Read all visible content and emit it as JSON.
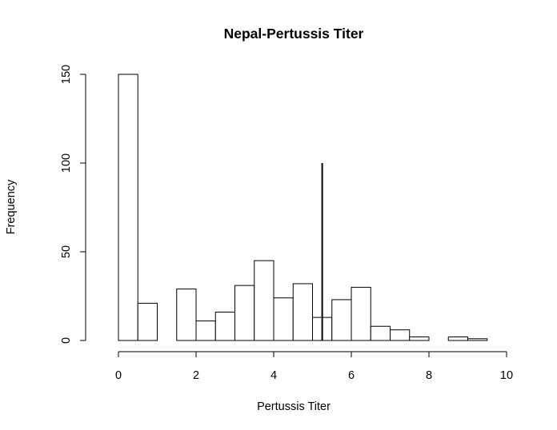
{
  "chart_data": {
    "type": "histogram",
    "title": "Nepal-Pertussis Titer",
    "xlabel": "Pertussis Titer",
    "ylabel": "Frequency",
    "xlim": [
      0,
      10
    ],
    "ylim": [
      0,
      150
    ],
    "x_ticks": [
      0,
      2,
      4,
      6,
      8,
      10
    ],
    "y_ticks": [
      0,
      50,
      100,
      150
    ],
    "bin_width": 0.5,
    "bins": [
      {
        "start": 0.0,
        "end": 0.5,
        "count": 150
      },
      {
        "start": 0.5,
        "end": 1.0,
        "count": 21
      },
      {
        "start": 1.0,
        "end": 1.5,
        "count": 0
      },
      {
        "start": 1.5,
        "end": 2.0,
        "count": 29
      },
      {
        "start": 2.0,
        "end": 2.5,
        "count": 11
      },
      {
        "start": 2.5,
        "end": 3.0,
        "count": 16
      },
      {
        "start": 3.0,
        "end": 3.5,
        "count": 31
      },
      {
        "start": 3.5,
        "end": 4.0,
        "count": 45
      },
      {
        "start": 4.0,
        "end": 4.5,
        "count": 24
      },
      {
        "start": 4.5,
        "end": 5.0,
        "count": 32
      },
      {
        "start": 5.0,
        "end": 5.5,
        "count": 13
      },
      {
        "start": 5.5,
        "end": 6.0,
        "count": 23
      },
      {
        "start": 6.0,
        "end": 6.5,
        "count": 30
      },
      {
        "start": 6.5,
        "end": 7.0,
        "count": 8
      },
      {
        "start": 7.0,
        "end": 7.5,
        "count": 6
      },
      {
        "start": 7.5,
        "end": 8.0,
        "count": 2
      },
      {
        "start": 8.0,
        "end": 8.5,
        "count": 0
      },
      {
        "start": 8.5,
        "end": 9.0,
        "count": 2
      },
      {
        "start": 9.0,
        "end": 9.5,
        "count": 1
      }
    ],
    "reference_line": {
      "x": 5.25,
      "y_from": 0,
      "y_to": 100
    },
    "grid": false,
    "legend": "none",
    "colors": {
      "bar_fill": "#ffffff",
      "bar_stroke": "#000000",
      "line": "#000000"
    }
  }
}
